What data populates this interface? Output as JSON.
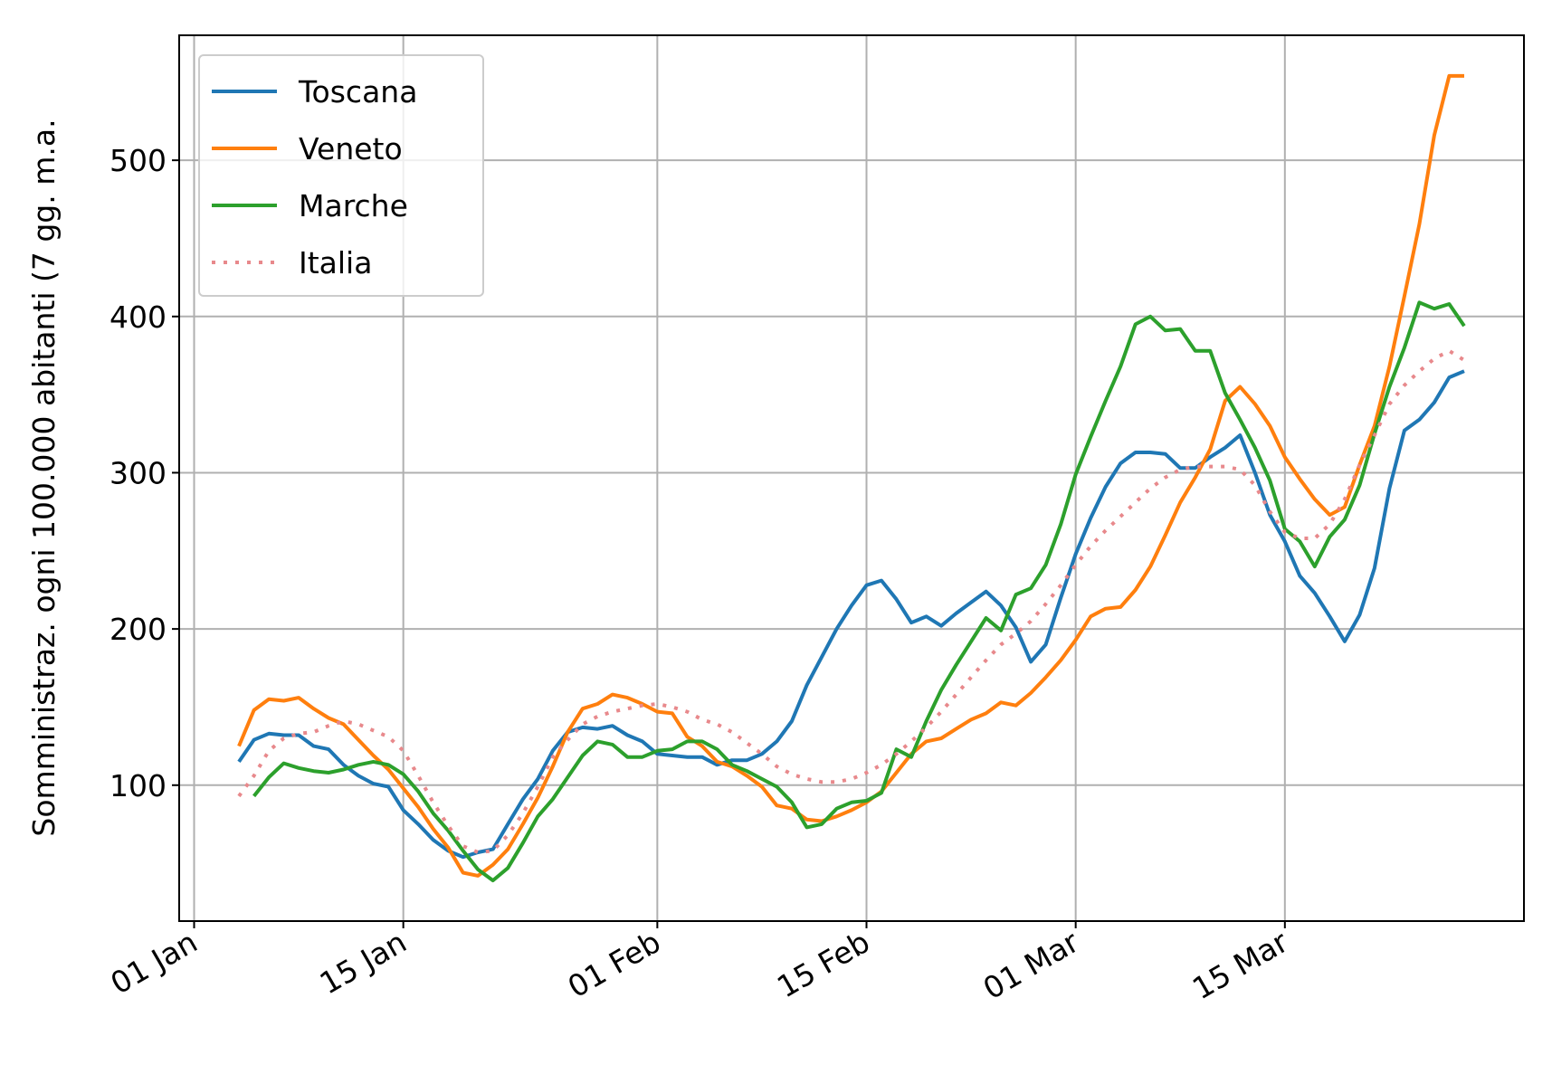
{
  "chart_data": {
    "type": "line",
    "y_label": "Somministraz. ogni 100.000 abitanti (7 gg. m.a.",
    "x": [
      "04 Jan",
      "05 Jan",
      "06 Jan",
      "07 Jan",
      "08 Jan",
      "09 Jan",
      "10 Jan",
      "11 Jan",
      "12 Jan",
      "13 Jan",
      "14 Jan",
      "15 Jan",
      "16 Jan",
      "17 Jan",
      "18 Jan",
      "19 Jan",
      "20 Jan",
      "21 Jan",
      "22 Jan",
      "23 Jan",
      "24 Jan",
      "25 Jan",
      "26 Jan",
      "27 Jan",
      "28 Jan",
      "29 Jan",
      "30 Jan",
      "31 Jan",
      "01 Feb",
      "02 Feb",
      "03 Feb",
      "04 Feb",
      "05 Feb",
      "06 Feb",
      "07 Feb",
      "08 Feb",
      "09 Feb",
      "10 Feb",
      "11 Feb",
      "12 Feb",
      "13 Feb",
      "14 Feb",
      "15 Feb",
      "16 Feb",
      "17 Feb",
      "18 Feb",
      "19 Feb",
      "20 Feb",
      "21 Feb",
      "22 Feb",
      "23 Feb",
      "24 Feb",
      "25 Feb",
      "26 Feb",
      "27 Feb",
      "28 Feb",
      "01 Mar",
      "02 Mar",
      "03 Mar",
      "04 Mar",
      "05 Mar",
      "06 Mar",
      "07 Mar",
      "08 Mar",
      "09 Mar",
      "10 Mar",
      "11 Mar",
      "12 Mar",
      "13 Mar",
      "14 Mar",
      "15 Mar",
      "16 Mar",
      "17 Mar",
      "18 Mar",
      "19 Mar",
      "20 Mar",
      "21 Mar",
      "22 Mar",
      "23 Mar",
      "24 Mar",
      "25 Mar",
      "26 Mar",
      "27 Mar"
    ],
    "series": [
      {
        "name": "Toscana",
        "color": "#1f77b4",
        "linestyle": "solid",
        "values": [
          115,
          129,
          133,
          132,
          132,
          125,
          123,
          113,
          106,
          101,
          99,
          84,
          75,
          65,
          58,
          54,
          57,
          59,
          75,
          91,
          104,
          122,
          134,
          137,
          136,
          138,
          132,
          128,
          120,
          119,
          118,
          118,
          113,
          116,
          116,
          120,
          128,
          141,
          164,
          182,
          200,
          215,
          228,
          231,
          219,
          204,
          208,
          202,
          210,
          217,
          224,
          215,
          201,
          179,
          190,
          220,
          248,
          271,
          291,
          306,
          313,
          313,
          312,
          303,
          303,
          310,
          316,
          324,
          300,
          273,
          256,
          234,
          223,
          208,
          192,
          209,
          239,
          290,
          327,
          334,
          345,
          361,
          365
        ]
      },
      {
        "name": "Veneto",
        "color": "#ff7f0e",
        "linestyle": "solid",
        "values": [
          125,
          148,
          155,
          154,
          156,
          149,
          143,
          139,
          129,
          119,
          110,
          98,
          86,
          72,
          60,
          44,
          42,
          49,
          59,
          75,
          92,
          112,
          134,
          149,
          152,
          158,
          156,
          152,
          147,
          146,
          131,
          125,
          115,
          112,
          106,
          99,
          87,
          85,
          78,
          77,
          80,
          84,
          89,
          96,
          108,
          120,
          128,
          130,
          136,
          142,
          146,
          153,
          151,
          159,
          169,
          180,
          193,
          208,
          213,
          214,
          225,
          240,
          260,
          281,
          297,
          315,
          346,
          355,
          344,
          330,
          310,
          296,
          283,
          273,
          278,
          305,
          330,
          368,
          413,
          459,
          516,
          554,
          554
        ]
      },
      {
        "name": "Marche",
        "color": "#2ca02c",
        "linestyle": "solid",
        "values": [
          null,
          93,
          105,
          114,
          111,
          109,
          108,
          110,
          113,
          115,
          113,
          107,
          96,
          82,
          71,
          58,
          46,
          39,
          47,
          63,
          80,
          91,
          105,
          119,
          128,
          126,
          118,
          118,
          122,
          123,
          128,
          128,
          123,
          113,
          109,
          104,
          99,
          89,
          73,
          75,
          85,
          89,
          90,
          95,
          123,
          118,
          141,
          161,
          177,
          192,
          207,
          199,
          222,
          226,
          241,
          267,
          299,
          323,
          346,
          368,
          395,
          400,
          391,
          392,
          378,
          378,
          351,
          334,
          316,
          295,
          264,
          256,
          240,
          259,
          270,
          292,
          325,
          355,
          380,
          409,
          405,
          408,
          394
        ]
      },
      {
        "name": "Italia",
        "color": "#e8898c",
        "linestyle": "dotted",
        "values": [
          93,
          106,
          122,
          130,
          133,
          134,
          138,
          141,
          139,
          135,
          131,
          122,
          106,
          89,
          74,
          61,
          57,
          58,
          68,
          82,
          99,
          118,
          129,
          139,
          144,
          147,
          149,
          151,
          152,
          150,
          147,
          142,
          139,
          134,
          127,
          120,
          112,
          107,
          104,
          102,
          102,
          104,
          108,
          113,
          120,
          128,
          137,
          147,
          158,
          169,
          180,
          190,
          197,
          205,
          216,
          228,
          241,
          253,
          263,
          272,
          281,
          290,
          297,
          302,
          304,
          304,
          304,
          302,
          292,
          275,
          262,
          258,
          258,
          267,
          283,
          305,
          324,
          344,
          356,
          365,
          373,
          378,
          372
        ]
      }
    ],
    "xlim": [
      "31 Dec",
      "31 Mar"
    ],
    "xticks": [
      "01 Jan",
      "15 Jan",
      "01 Feb",
      "15 Feb",
      "01 Mar",
      "15 Mar"
    ],
    "ylim": [
      13,
      580
    ],
    "yticks": [
      100,
      200,
      300,
      400,
      500
    ],
    "grid": true,
    "legend": "upper left"
  }
}
